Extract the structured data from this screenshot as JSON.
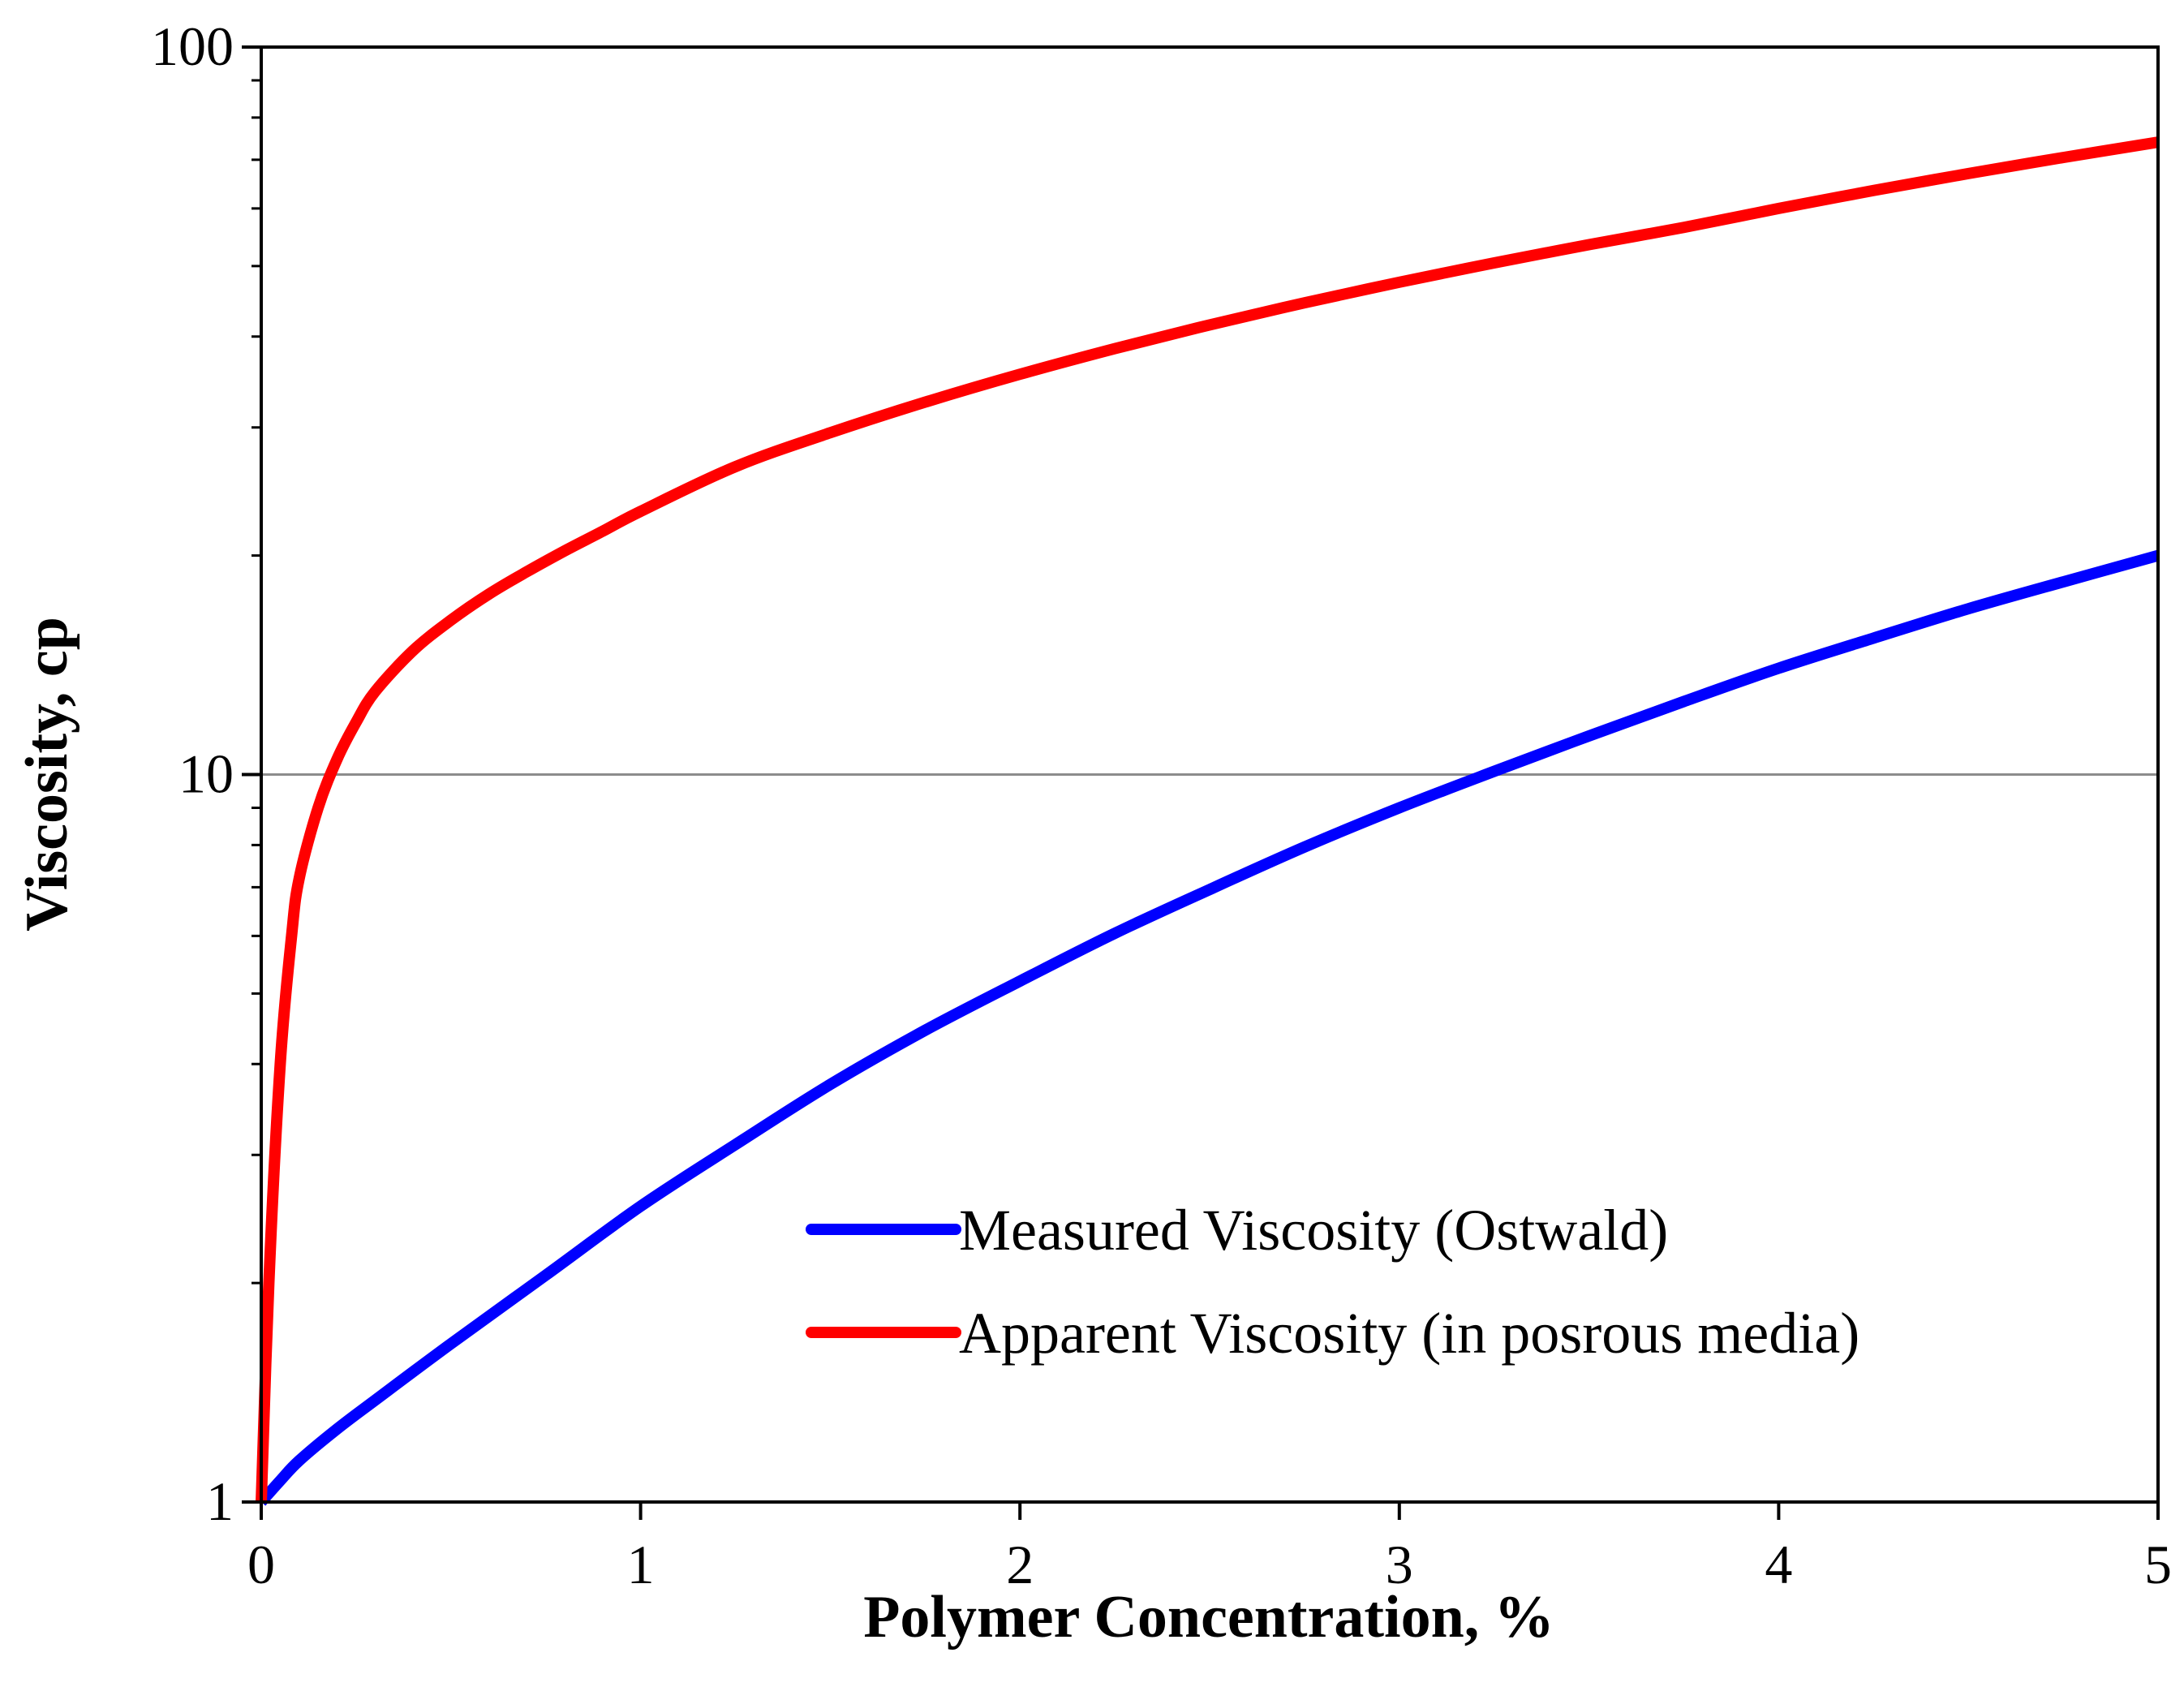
{
  "chart_data": {
    "type": "line",
    "title": "",
    "xlabel": "Polymer Concentration, %",
    "ylabel": "Viscosity, cp",
    "xlim": [
      0,
      5
    ],
    "ylim": [
      1,
      100
    ],
    "yscale": "log",
    "x_ticks": [
      "0",
      "1",
      "2",
      "3",
      "4",
      "5"
    ],
    "y_ticks": [
      "1",
      "10",
      "100"
    ],
    "grid": "horizontal major",
    "legend_position": "lower-right",
    "series": [
      {
        "name": "Measured Viscosity (Ostwald)",
        "color": "#0000ff",
        "x": [
          0,
          0.05,
          0.1,
          0.2,
          0.3,
          0.5,
          0.75,
          1.0,
          1.25,
          1.5,
          1.75,
          2.0,
          2.25,
          2.5,
          2.75,
          3.0,
          3.25,
          3.5,
          3.75,
          4.0,
          4.25,
          4.5,
          4.75,
          5.0
        ],
        "values": [
          1.0,
          1.07,
          1.14,
          1.26,
          1.38,
          1.65,
          2.05,
          2.55,
          3.1,
          3.75,
          4.45,
          5.2,
          6.05,
          6.95,
          7.95,
          9.0,
          10.1,
          11.3,
          12.6,
          14.0,
          15.4,
          16.9,
          18.4,
          20.0
        ]
      },
      {
        "name": "Apparent Viscosity (in posrous media)",
        "color": "#ff0000",
        "x": [
          0,
          0.02,
          0.05,
          0.08,
          0.1,
          0.15,
          0.2,
          0.25,
          0.3,
          0.4,
          0.5,
          0.6,
          0.7,
          0.8,
          0.9,
          1.0,
          1.25,
          1.5,
          1.75,
          2.0,
          2.25,
          2.5,
          2.75,
          3.0,
          3.25,
          3.5,
          3.75,
          4.0,
          4.25,
          4.5,
          4.75,
          5.0
        ],
        "values": [
          1.0,
          2.0,
          4.0,
          6.0,
          7.2,
          9.0,
          10.5,
          11.8,
          13.0,
          14.8,
          16.3,
          17.7,
          19.0,
          20.3,
          21.6,
          23.0,
          26.5,
          29.5,
          32.5,
          35.5,
          38.5,
          41.5,
          44.5,
          47.5,
          50.5,
          53.5,
          56.5,
          60.0,
          63.5,
          67.0,
          70.5,
          74.0
        ]
      }
    ]
  }
}
